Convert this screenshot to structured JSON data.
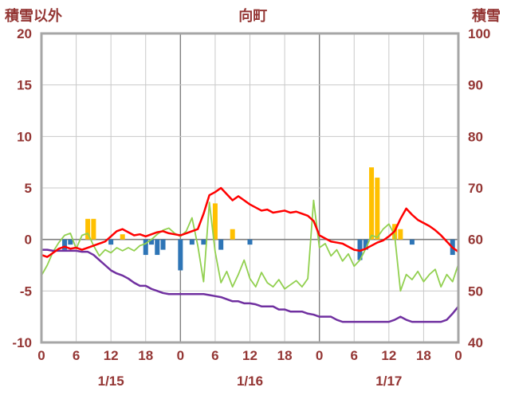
{
  "header": {
    "left_axis_title": "積雪以外",
    "chart_title": "向町",
    "right_axis_title": "積雪"
  },
  "chart_data": {
    "type": "combo",
    "title": "向町",
    "xlabel": "",
    "ylabel_left": "積雪以外",
    "ylabel_right": "積雪",
    "left_axis": {
      "label": "積雪以外",
      "range": [
        -10,
        20
      ],
      "ticks": [
        20,
        15,
        10,
        5,
        0,
        -5,
        -10
      ]
    },
    "right_axis": {
      "label": "積雪",
      "range": [
        40,
        100
      ],
      "ticks": [
        100,
        90,
        80,
        70,
        60,
        50,
        40
      ]
    },
    "x_range": [
      0,
      72
    ],
    "x_tick_step_hours": 6,
    "x_ticks": [
      {
        "h": 0,
        "label": "0"
      },
      {
        "h": 6,
        "label": "6"
      },
      {
        "h": 12,
        "label": "12"
      },
      {
        "h": 18,
        "label": "18"
      },
      {
        "h": 24,
        "label": "0"
      },
      {
        "h": 30,
        "label": "6"
      },
      {
        "h": 36,
        "label": "12"
      },
      {
        "h": 42,
        "label": "18"
      },
      {
        "h": 48,
        "label": "0"
      },
      {
        "h": 54,
        "label": "6"
      },
      {
        "h": 60,
        "label": "12"
      },
      {
        "h": 66,
        "label": "18"
      },
      {
        "h": 72,
        "label": "0"
      }
    ],
    "day_labels": [
      {
        "h": 12,
        "label": "1/15"
      },
      {
        "h": 36,
        "label": "1/16"
      },
      {
        "h": 60,
        "label": "1/17"
      }
    ],
    "grid": true,
    "legend": "none",
    "colors": {
      "text": "#943634",
      "frame": "#A6A6A6",
      "grid": "#C9C9C9",
      "grid_major": "#7F7F7F",
      "zero_line": "#7F7F7F",
      "background": "#FFFFFF",
      "orange_bar": "#FFC000",
      "blue_bar": "#2E75B6",
      "red_line": "#FF0000",
      "green_line": "#92D050",
      "purple_line": "#7030A0"
    },
    "series": [
      {
        "name": "orange-bars",
        "type": "bar",
        "color_key": "orange_bar",
        "points": [
          {
            "h": 8,
            "v": 2.0
          },
          {
            "h": 9,
            "v": 2.0
          },
          {
            "h": 14,
            "v": 0.5
          },
          {
            "h": 30,
            "v": 3.5
          },
          {
            "h": 33,
            "v": 1.0
          },
          {
            "h": 57,
            "v": 7.0
          },
          {
            "h": 58,
            "v": 6.0
          },
          {
            "h": 61,
            "v": 1.5
          },
          {
            "h": 62,
            "v": 1.0
          }
        ]
      },
      {
        "name": "blue-bars",
        "type": "bar",
        "color_key": "blue_bar",
        "points": [
          {
            "h": 4,
            "v": -1.0
          },
          {
            "h": 5,
            "v": -0.5
          },
          {
            "h": 12,
            "v": -0.5
          },
          {
            "h": 18,
            "v": -1.5
          },
          {
            "h": 19,
            "v": -0.5
          },
          {
            "h": 20,
            "v": -1.5
          },
          {
            "h": 21,
            "v": -1.0
          },
          {
            "h": 24,
            "v": -3.0
          },
          {
            "h": 26,
            "v": -0.5
          },
          {
            "h": 28,
            "v": -0.5
          },
          {
            "h": 31,
            "v": -1.0
          },
          {
            "h": 36,
            "v": -0.5
          },
          {
            "h": 55,
            "v": -2.0
          },
          {
            "h": 56,
            "v": -1.0
          },
          {
            "h": 64,
            "v": -0.5
          },
          {
            "h": 71,
            "v": -1.5
          }
        ]
      },
      {
        "name": "green-line",
        "type": "line",
        "color_key": "green_line",
        "width": 1.8,
        "values": [
          -3.5,
          -2.5,
          -1.2,
          -0.3,
          0.4,
          0.6,
          -0.9,
          0.4,
          0.6,
          -0.6,
          -1.6,
          -1.0,
          -1.3,
          -0.8,
          -1.1,
          -0.8,
          -1.1,
          -0.6,
          -0.4,
          0.0,
          0.5,
          0.9,
          1.1,
          0.6,
          0.3,
          0.8,
          2.1,
          -0.6,
          -4.1,
          3.6,
          -1.2,
          -4.2,
          -3.1,
          -4.6,
          -3.4,
          -2.0,
          -3.8,
          -4.6,
          -3.2,
          -4.2,
          -4.6,
          -3.9,
          -4.8,
          -4.4,
          -4.0,
          -4.6,
          -3.8,
          3.8,
          -0.8,
          -0.4,
          -1.6,
          -1.0,
          -2.1,
          -1.4,
          -2.6,
          -2.0,
          -0.9,
          0.4,
          0.2,
          1.0,
          1.5,
          0.4,
          -5.0,
          -3.4,
          -3.9,
          -3.1,
          -4.1,
          -3.4,
          -2.9,
          -4.6,
          -3.4,
          -4.1,
          -2.4
        ]
      },
      {
        "name": "purple-line",
        "type": "line",
        "color_key": "purple_line",
        "width": 2.5,
        "values": [
          -1.0,
          -1.0,
          -1.1,
          -1.1,
          -1.1,
          -1.1,
          -1.1,
          -1.2,
          -1.2,
          -1.5,
          -2.0,
          -2.5,
          -3.0,
          -3.3,
          -3.5,
          -3.8,
          -4.2,
          -4.5,
          -4.5,
          -4.8,
          -5.0,
          -5.2,
          -5.3,
          -5.3,
          -5.3,
          -5.3,
          -5.3,
          -5.3,
          -5.3,
          -5.4,
          -5.5,
          -5.6,
          -5.8,
          -6.0,
          -6.0,
          -6.2,
          -6.2,
          -6.3,
          -6.5,
          -6.5,
          -6.5,
          -6.8,
          -6.8,
          -7.0,
          -7.0,
          -7.0,
          -7.2,
          -7.3,
          -7.5,
          -7.5,
          -7.5,
          -7.8,
          -8.0,
          -8.0,
          -8.0,
          -8.0,
          -8.0,
          -8.0,
          -8.0,
          -8.0,
          -8.0,
          -7.8,
          -7.5,
          -7.8,
          -8.0,
          -8.0,
          -8.0,
          -8.0,
          -8.0,
          -8.0,
          -7.8,
          -7.2,
          -6.5
        ]
      },
      {
        "name": "red-line",
        "type": "line",
        "color_key": "red_line",
        "width": 2.5,
        "values": [
          -1.5,
          -1.7,
          -1.3,
          -0.9,
          -0.7,
          -0.9,
          -0.8,
          -1.0,
          -0.8,
          -0.6,
          -0.4,
          -0.2,
          0.3,
          0.8,
          1.0,
          0.7,
          0.4,
          0.5,
          0.3,
          0.5,
          0.7,
          0.8,
          0.6,
          0.5,
          0.4,
          0.6,
          0.8,
          1.0,
          2.5,
          4.3,
          4.6,
          5.0,
          4.4,
          3.8,
          4.2,
          3.8,
          3.4,
          3.1,
          2.8,
          2.9,
          2.6,
          2.7,
          2.8,
          2.6,
          2.7,
          2.5,
          2.3,
          1.8,
          0.4,
          0.1,
          -0.2,
          -0.3,
          -0.4,
          -0.7,
          -1.0,
          -1.1,
          -0.9,
          -0.6,
          -0.3,
          -0.1,
          0.3,
          0.8,
          2.0,
          3.0,
          2.4,
          1.9,
          1.6,
          1.3,
          0.9,
          0.4,
          -0.2,
          -0.8,
          -1.2
        ]
      }
    ]
  }
}
